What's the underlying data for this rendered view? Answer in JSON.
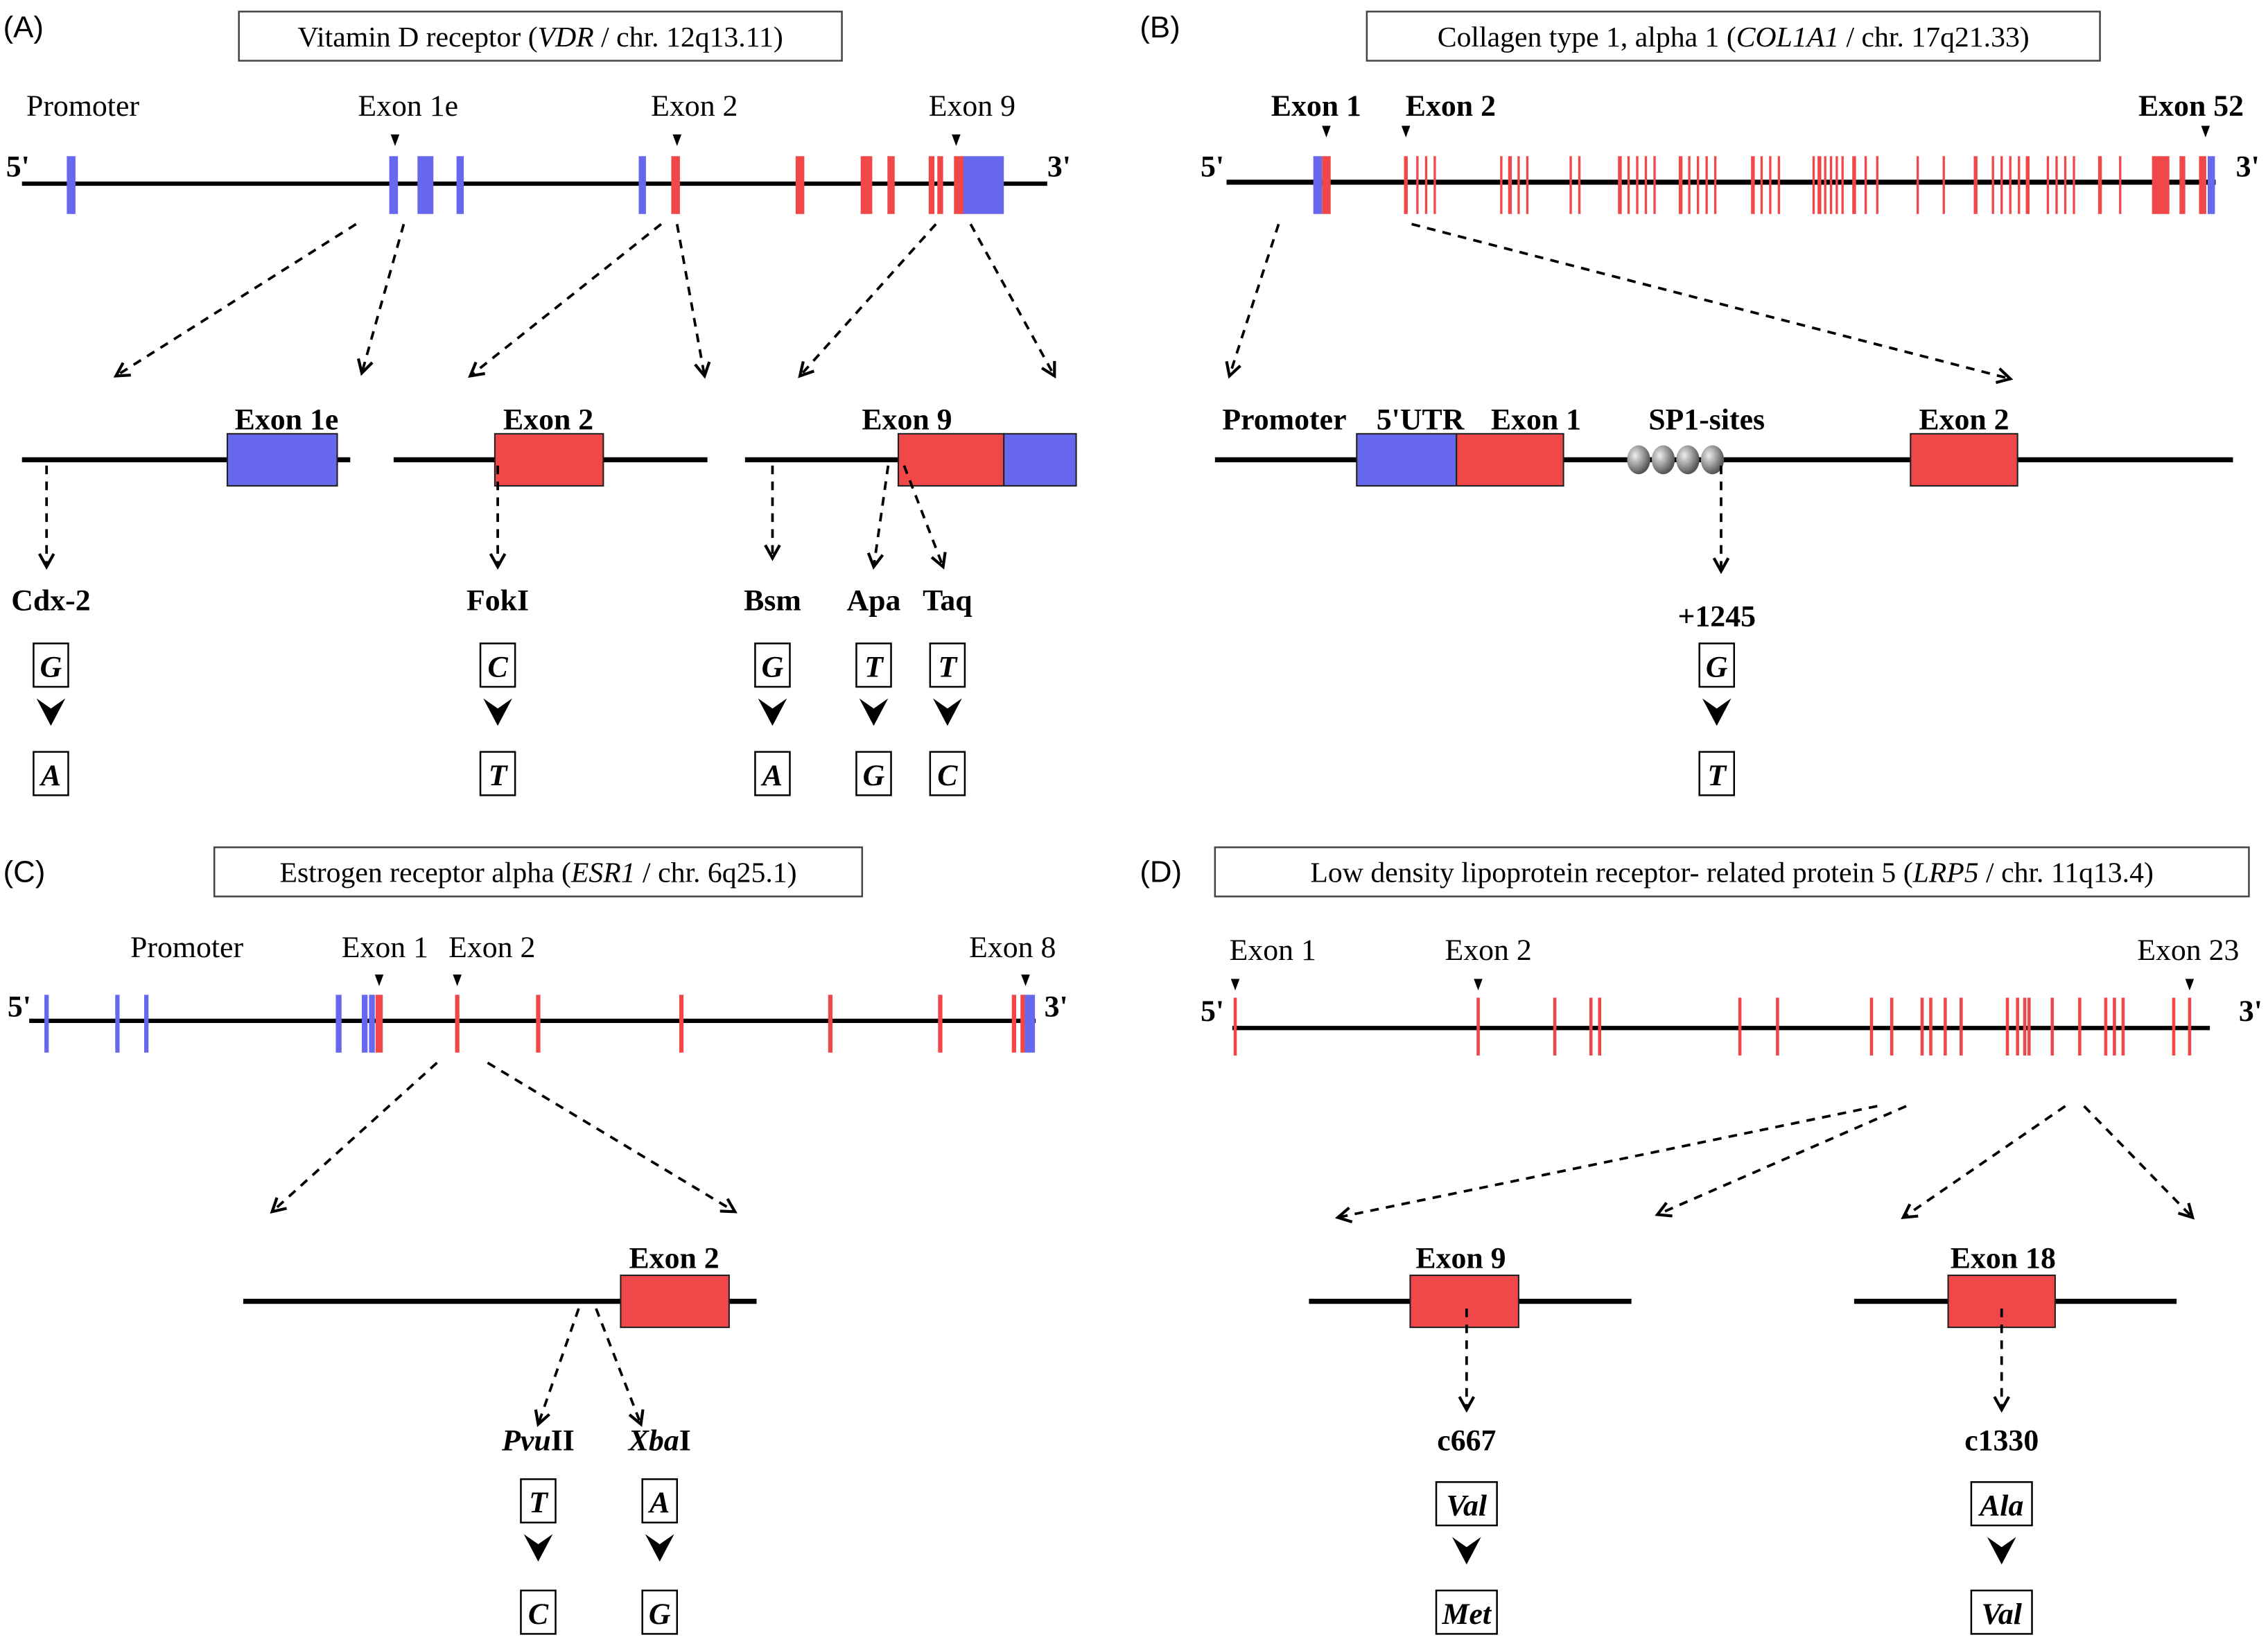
{
  "colors": {
    "non_coding": "#6868ee",
    "coding": "#f04848",
    "line": "#000000",
    "sp1_site": "#777777"
  },
  "panels": [
    {
      "label": "(A)",
      "title": {
        "prefix": "Vitamin D  receptor (",
        "gene": "VDR",
        "suffix": " / chr. 12q13.11)"
      },
      "five": "5'",
      "three": "3'",
      "gene_labels": [
        "Promoter",
        "Exon 1e",
        "Exon 2",
        "Exon 9"
      ],
      "gene_labels_bold": false,
      "zoom_labels": [
        "Exon 1e",
        "Exon 2",
        "Exon 9"
      ],
      "snps": [
        {
          "name": "Cdx-2",
          "ref": "G",
          "alt": "A"
        },
        {
          "name": "FokI",
          "ref": "C",
          "alt": "T"
        },
        {
          "name": "Bsm",
          "ref": "G",
          "alt": "A"
        },
        {
          "name": "Apa",
          "ref": "T",
          "alt": "G"
        },
        {
          "name": "Taq",
          "ref": "T",
          "alt": "C"
        }
      ]
    },
    {
      "label": "(B)",
      "title": {
        "prefix": "Collagen  type 1,  alpha 1 (",
        "gene": "COL1A1",
        "suffix": " / chr. 17q21.33)"
      },
      "five": "5'",
      "three": "3'",
      "gene_labels": [
        "Exon 1",
        "Exon 2",
        "Exon 52"
      ],
      "gene_labels_bold": true,
      "zoom_labels": [
        "Promoter",
        "5'UTR",
        "Exon 1",
        "SP1-sites",
        "Exon 2"
      ],
      "snps": [
        {
          "name": "+1245",
          "ref": "G",
          "alt": "T"
        }
      ]
    },
    {
      "label": "(C)",
      "title": {
        "prefix": "Estrogen  receptor  alpha (",
        "gene": "ESR1",
        "suffix": " / chr. 6q25.1)"
      },
      "five": "5'",
      "three": "3'",
      "gene_labels": [
        "Promoter",
        "Exon 1",
        "Exon 2",
        "Exon 8"
      ],
      "gene_labels_bold": false,
      "zoom_labels": [
        "Exon 2"
      ],
      "snps": [
        {
          "name_italic": "Pvu",
          "name": "II",
          "ref": "T",
          "alt": "C"
        },
        {
          "name_italic": "Xba",
          "name": "I",
          "ref": "A",
          "alt": "G"
        }
      ]
    },
    {
      "label": "(D)",
      "title": {
        "prefix": "Low  density  lipoprotein  receptor- related protein 5 (",
        "gene": "LRP5",
        "suffix": " / chr. 11q13.4)"
      },
      "five": "5'",
      "three": "3'",
      "gene_labels": [
        "Exon 1",
        "Exon 2",
        "Exon 23"
      ],
      "gene_labels_bold": false,
      "zoom_labels": [
        "Exon 9",
        "Exon 18"
      ],
      "snps": [
        {
          "name": "c667",
          "ref": "Val",
          "alt": "Met"
        },
        {
          "name": "c1330",
          "ref": "Ala",
          "alt": "Val"
        }
      ]
    }
  ]
}
